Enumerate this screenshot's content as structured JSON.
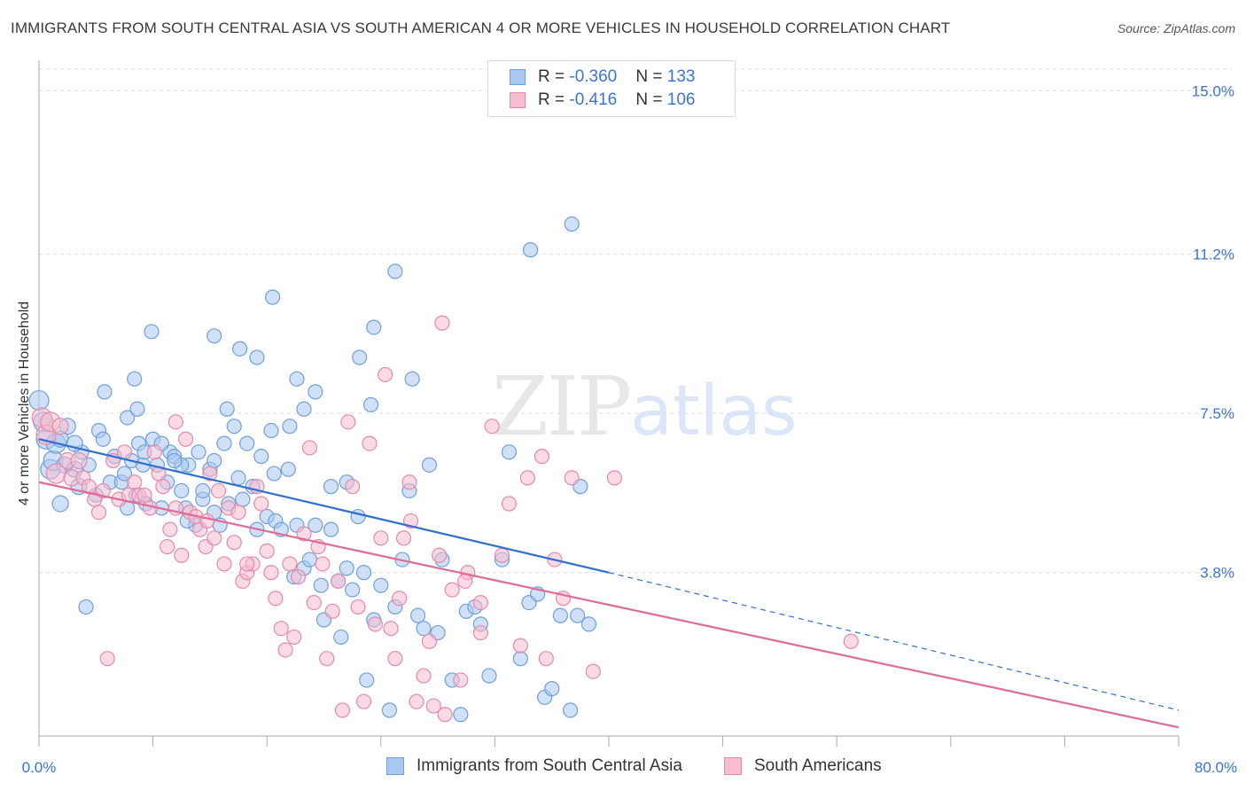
{
  "title": "IMMIGRANTS FROM SOUTH CENTRAL ASIA VS SOUTH AMERICAN 4 OR MORE VEHICLES IN HOUSEHOLD CORRELATION CHART",
  "source": "Source: ZipAtlas.com",
  "watermark": {
    "zip": "ZIP",
    "atlas": "atlas"
  },
  "legend": {
    "rows": [
      {
        "r_label": "R = ",
        "r_value": "-0.360",
        "n_label": "N = ",
        "n_value": "133"
      },
      {
        "r_label": "R = ",
        "r_value": "-0.416",
        "n_label": "N = ",
        "n_value": "106"
      }
    ]
  },
  "colors": {
    "blue_fill": "#a9c8f0",
    "blue_stroke": "#6f9fdc",
    "blue_line": "#2f6fd0",
    "pink_fill": "#f6bcd0",
    "pink_stroke": "#e68aa8",
    "pink_line": "#e06b95",
    "axis_text": "#3a74d6",
    "grid": "#dddddd"
  },
  "chart_data": {
    "type": "scatter",
    "title": "IMMIGRANTS FROM SOUTH CENTRAL ASIA VS SOUTH AMERICAN 4 OR MORE VEHICLES IN HOUSEHOLD CORRELATION CHART",
    "xlabel": "",
    "ylabel": "4 or more Vehicles in Household",
    "xlim": [
      0,
      80
    ],
    "ylim": [
      0,
      15.5
    ],
    "x_tick_labels": [
      "0.0%",
      "80.0%"
    ],
    "y_ticks": [
      3.8,
      7.5,
      11.2,
      15.0
    ],
    "y_tick_labels": [
      "3.8%",
      "7.5%",
      "11.2%",
      "15.0%"
    ],
    "grid": true,
    "legend_position": "top-center",
    "series": [
      {
        "name": "Immigrants from South Central Asia",
        "color": "#a9c8f0",
        "r": -0.36,
        "n": 133,
        "trend": {
          "x0": 0,
          "y0": 6.9,
          "x1": 40,
          "y1": 3.8,
          "dashed_to_x": 80,
          "dashed_to_y": 0.6
        },
        "points": [
          [
            0,
            7.8
          ],
          [
            0.3,
            7.3
          ],
          [
            0.5,
            6.9
          ],
          [
            0.8,
            6.2
          ],
          [
            1,
            6.4
          ],
          [
            1.2,
            6.8
          ],
          [
            1.5,
            5.4
          ],
          [
            1.8,
            6.3
          ],
          [
            2,
            7.2
          ],
          [
            2.5,
            6.2
          ],
          [
            2.8,
            5.8
          ],
          [
            3,
            6.6
          ],
          [
            3.5,
            6.3
          ],
          [
            4,
            5.6
          ],
          [
            4.2,
            7.1
          ],
          [
            4.5,
            6.9
          ],
          [
            5,
            5.9
          ],
          [
            5.3,
            6.5
          ],
          [
            5.8,
            5.9
          ],
          [
            6,
            6.1
          ],
          [
            6.2,
            7.4
          ],
          [
            6.5,
            6.4
          ],
          [
            6.8,
            5.6
          ],
          [
            7,
            6.8
          ],
          [
            7.3,
            6.3
          ],
          [
            7.5,
            5.4
          ],
          [
            8,
            6.9
          ],
          [
            8.3,
            6.3
          ],
          [
            8.6,
            5.3
          ],
          [
            9,
            5.9
          ],
          [
            9.2,
            6.6
          ],
          [
            9.5,
            6.5
          ],
          [
            10,
            5.7
          ],
          [
            10.3,
            5.3
          ],
          [
            10.5,
            6.3
          ],
          [
            11,
            4.9
          ],
          [
            11.2,
            6.6
          ],
          [
            11.5,
            5.5
          ],
          [
            12,
            6.2
          ],
          [
            12.3,
            5.2
          ],
          [
            12.7,
            4.9
          ],
          [
            13,
            6.8
          ],
          [
            13.3,
            5.4
          ],
          [
            13.7,
            7.2
          ],
          [
            14,
            6.0
          ],
          [
            14.3,
            5.5
          ],
          [
            14.6,
            6.8
          ],
          [
            15,
            5.8
          ],
          [
            15.3,
            4.8
          ],
          [
            15.6,
            6.5
          ],
          [
            16,
            5.1
          ],
          [
            16.3,
            7.1
          ],
          [
            16.6,
            5.0
          ],
          [
            17,
            4.8
          ],
          [
            17.5,
            6.2
          ],
          [
            17.9,
            3.7
          ],
          [
            18.1,
            4.9
          ],
          [
            18.6,
            3.9
          ],
          [
            19,
            4.1
          ],
          [
            19.4,
            4.9
          ],
          [
            19.8,
            3.5
          ],
          [
            20,
            2.7
          ],
          [
            20.5,
            4.8
          ],
          [
            21,
            3.6
          ],
          [
            21.2,
            2.3
          ],
          [
            21.6,
            3.9
          ],
          [
            22,
            3.4
          ],
          [
            22.4,
            5.1
          ],
          [
            22.8,
            3.8
          ],
          [
            23,
            1.3
          ],
          [
            23.5,
            2.7
          ],
          [
            24,
            3.5
          ],
          [
            24.6,
            0.6
          ],
          [
            25,
            3.0
          ],
          [
            25.5,
            4.1
          ],
          [
            26,
            5.7
          ],
          [
            26.6,
            2.8
          ],
          [
            27,
            2.5
          ],
          [
            27.4,
            6.3
          ],
          [
            28,
            2.4
          ],
          [
            28.3,
            4.1
          ],
          [
            29,
            1.3
          ],
          [
            29.6,
            0.5
          ],
          [
            30,
            2.9
          ],
          [
            30.6,
            3.0
          ],
          [
            31,
            2.6
          ],
          [
            31.6,
            1.4
          ],
          [
            32.5,
            4.1
          ],
          [
            33,
            6.6
          ],
          [
            33.8,
            1.8
          ],
          [
            34.4,
            3.1
          ],
          [
            35,
            3.3
          ],
          [
            35.5,
            0.9
          ],
          [
            36,
            1.1
          ],
          [
            36.6,
            2.8
          ],
          [
            37.3,
            0.6
          ],
          [
            37.8,
            2.8
          ],
          [
            38,
            5.8
          ],
          [
            38.6,
            2.6
          ],
          [
            23.5,
            9.5
          ],
          [
            25,
            10.8
          ],
          [
            26.2,
            8.3
          ],
          [
            34.5,
            11.3
          ],
          [
            37.4,
            11.9
          ],
          [
            10,
            6.3
          ],
          [
            16.4,
            10.2
          ],
          [
            7.9,
            9.4
          ],
          [
            12.3,
            9.3
          ],
          [
            14.1,
            9.0
          ],
          [
            15.3,
            8.8
          ],
          [
            4.6,
            8.0
          ],
          [
            6.7,
            8.3
          ],
          [
            18.1,
            8.3
          ],
          [
            19.4,
            8.0
          ],
          [
            22.5,
            8.8
          ],
          [
            23.3,
            7.7
          ],
          [
            6.9,
            7.6
          ],
          [
            17.6,
            7.2
          ],
          [
            18.6,
            7.6
          ],
          [
            11.5,
            5.7
          ],
          [
            13.2,
            7.6
          ],
          [
            16.5,
            6.1
          ],
          [
            20.5,
            5.8
          ],
          [
            21.6,
            5.9
          ],
          [
            9.5,
            6.4
          ],
          [
            3.3,
            3.0
          ],
          [
            1.5,
            6.9
          ],
          [
            6.2,
            5.3
          ],
          [
            8.6,
            6.8
          ],
          [
            10.4,
            5.0
          ],
          [
            12.3,
            6.4
          ],
          [
            7.4,
            6.6
          ],
          [
            2.5,
            6.8
          ]
        ],
        "sizes_note": "larger points near x=0"
      },
      {
        "name": "South Americans",
        "color": "#f6bcd0",
        "r": -0.416,
        "n": 106,
        "trend": {
          "x0": 0,
          "y0": 5.9,
          "x1": 80,
          "y1": 0.2
        },
        "points": [
          [
            0.2,
            7.4
          ],
          [
            0.5,
            7.0
          ],
          [
            0.8,
            7.3
          ],
          [
            1.2,
            6.1
          ],
          [
            1.5,
            7.2
          ],
          [
            2,
            6.4
          ],
          [
            2.3,
            6.0
          ],
          [
            2.8,
            6.4
          ],
          [
            3.1,
            6.0
          ],
          [
            3.5,
            5.8
          ],
          [
            3.9,
            5.5
          ],
          [
            4.2,
            5.2
          ],
          [
            4.5,
            5.7
          ],
          [
            4.8,
            1.8
          ],
          [
            5.2,
            6.4
          ],
          [
            5.6,
            5.5
          ],
          [
            6,
            6.6
          ],
          [
            6.3,
            5.6
          ],
          [
            6.7,
            5.9
          ],
          [
            7,
            5.6
          ],
          [
            7.4,
            5.6
          ],
          [
            7.8,
            5.3
          ],
          [
            8.1,
            6.6
          ],
          [
            8.4,
            6.1
          ],
          [
            8.7,
            5.8
          ],
          [
            9,
            4.4
          ],
          [
            9.2,
            4.8
          ],
          [
            9.6,
            5.3
          ],
          [
            10,
            4.2
          ],
          [
            10.3,
            6.9
          ],
          [
            10.6,
            5.2
          ],
          [
            11,
            5.1
          ],
          [
            11.3,
            4.8
          ],
          [
            11.7,
            4.4
          ],
          [
            12,
            6.1
          ],
          [
            12.3,
            4.6
          ],
          [
            12.6,
            5.7
          ],
          [
            13,
            4.0
          ],
          [
            13.3,
            5.3
          ],
          [
            13.7,
            4.5
          ],
          [
            14,
            5.2
          ],
          [
            14.3,
            3.6
          ],
          [
            14.6,
            3.8
          ],
          [
            15,
            4.0
          ],
          [
            15.3,
            5.8
          ],
          [
            15.6,
            5.4
          ],
          [
            16,
            4.3
          ],
          [
            16.3,
            3.8
          ],
          [
            16.6,
            3.2
          ],
          [
            17,
            2.5
          ],
          [
            17.3,
            2.0
          ],
          [
            17.6,
            4.0
          ],
          [
            17.9,
            2.3
          ],
          [
            18.2,
            3.7
          ],
          [
            18.6,
            4.7
          ],
          [
            19,
            6.7
          ],
          [
            19.3,
            3.1
          ],
          [
            19.6,
            4.4
          ],
          [
            19.9,
            4.0
          ],
          [
            20.2,
            1.8
          ],
          [
            20.6,
            2.9
          ],
          [
            21,
            3.6
          ],
          [
            21.3,
            0.6
          ],
          [
            21.7,
            7.3
          ],
          [
            22,
            5.8
          ],
          [
            22.4,
            3.0
          ],
          [
            22.8,
            0.8
          ],
          [
            23.2,
            6.8
          ],
          [
            23.6,
            2.6
          ],
          [
            24,
            4.6
          ],
          [
            24.3,
            8.4
          ],
          [
            24.7,
            2.5
          ],
          [
            25,
            1.8
          ],
          [
            25.3,
            3.2
          ],
          [
            25.6,
            4.6
          ],
          [
            26,
            5.9
          ],
          [
            26.5,
            0.8
          ],
          [
            27,
            1.4
          ],
          [
            27.4,
            2.2
          ],
          [
            27.7,
            0.7
          ],
          [
            28.1,
            4.2
          ],
          [
            28.5,
            0.5
          ],
          [
            29,
            3.4
          ],
          [
            29.6,
            1.3
          ],
          [
            30.1,
            3.8
          ],
          [
            31,
            2.4
          ],
          [
            31.8,
            7.2
          ],
          [
            32.5,
            4.2
          ],
          [
            33,
            5.4
          ],
          [
            33.8,
            2.1
          ],
          [
            34.3,
            6.0
          ],
          [
            35.3,
            6.5
          ],
          [
            35.6,
            1.8
          ],
          [
            36.2,
            4.1
          ],
          [
            36.8,
            3.2
          ],
          [
            37.4,
            6.0
          ],
          [
            38.9,
            1.5
          ],
          [
            40.4,
            6.0
          ],
          [
            57,
            2.2
          ],
          [
            28.3,
            9.6
          ],
          [
            26.1,
            5.0
          ],
          [
            29.9,
            3.6
          ],
          [
            11.8,
            5.0
          ],
          [
            31.0,
            3.1
          ],
          [
            9.6,
            7.3
          ],
          [
            14.6,
            4.0
          ]
        ]
      }
    ]
  }
}
